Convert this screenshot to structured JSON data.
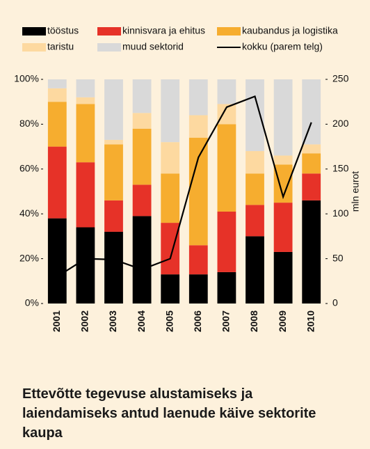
{
  "chart_data": {
    "type": "bar",
    "stacked": true,
    "title": "Ettevõtte tegevuse alustamiseks ja laiendamiseks antud laenude käive sektorite kaupa",
    "categories": [
      "2001",
      "2002",
      "2003",
      "2004",
      "2005",
      "2006",
      "2007",
      "2008",
      "2009",
      "2010"
    ],
    "series": [
      {
        "name": "tööstus",
        "color": "#000000",
        "values": [
          38,
          34,
          32,
          39,
          13,
          13,
          14,
          30,
          23,
          46
        ]
      },
      {
        "name": "kinnisvara ja ehitus",
        "color": "#e63228",
        "values": [
          32,
          29,
          14,
          14,
          23,
          13,
          27,
          14,
          22,
          12
        ]
      },
      {
        "name": "kaubandus ja logistika",
        "color": "#f6ad2f",
        "values": [
          20,
          26,
          25,
          25,
          22,
          48,
          39,
          14,
          17,
          9
        ]
      },
      {
        "name": "taristu",
        "color": "#fdd9a0",
        "values": [
          6,
          3,
          2,
          7,
          14,
          10,
          9,
          10,
          4,
          4
        ]
      },
      {
        "name": "muud sektorid",
        "color": "#d9d9d9",
        "values": [
          4,
          8,
          27,
          15,
          28,
          16,
          11,
          32,
          34,
          29
        ]
      },
      {
        "name": "kokku (parem telg)",
        "color": "#000000",
        "type": "line",
        "axis": "y2",
        "values": [
          30,
          50,
          49,
          38,
          50,
          163,
          219,
          231,
          119,
          202
        ]
      }
    ],
    "ylim": [
      0,
      100
    ],
    "yticks": [
      {
        "value": 0,
        "label": "0%"
      },
      {
        "value": 20,
        "label": "20%"
      },
      {
        "value": 40,
        "label": "40%"
      },
      {
        "value": 60,
        "label": "60%"
      },
      {
        "value": 80,
        "label": "80%"
      },
      {
        "value": 100,
        "label": "100%"
      }
    ],
    "y2lim": [
      0,
      250
    ],
    "y2ticks": [
      0,
      50,
      100,
      150,
      200,
      250
    ],
    "y2_label": "mln eurot",
    "grid": false,
    "legend": "top"
  }
}
